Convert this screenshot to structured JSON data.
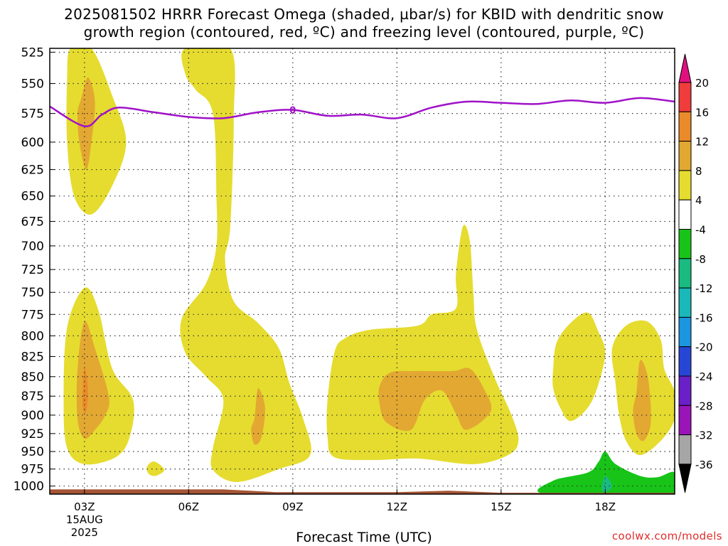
{
  "title": {
    "line1": "2025081502 HRRR Forecast Omega (shaded, µbar/s) for KBID with dendritic snow",
    "line2": "growth region (contoured, red, ºC) and freezing level (contoured, purple, ºC)"
  },
  "credit": "coolwx.com/models",
  "chart_data": {
    "type": "heatmap",
    "title": "2025081502 HRRR Forecast Omega (shaded, µbar/s) for KBID with dendritic snow growth region (contoured, red, ºC) and freezing level (contoured, purple, ºC)",
    "xlabel": "Forecast Time (UTC)",
    "ylabel": "",
    "x_range_hours_utc": [
      2,
      20
    ],
    "y_range_hpa": [
      1012,
      522
    ],
    "y_scale": "log-pressure (inverted)",
    "grid": true,
    "x_ticks": [
      {
        "hour": 3,
        "label": "03Z",
        "sub1": "15AUG",
        "sub2": "2025"
      },
      {
        "hour": 6,
        "label": "06Z"
      },
      {
        "hour": 9,
        "label": "09Z"
      },
      {
        "hour": 12,
        "label": "12Z"
      },
      {
        "hour": 15,
        "label": "15Z"
      },
      {
        "hour": 18,
        "label": "18Z"
      }
    ],
    "y_ticks": [
      525,
      550,
      575,
      600,
      625,
      650,
      675,
      700,
      725,
      750,
      775,
      800,
      825,
      850,
      875,
      900,
      925,
      950,
      975,
      1000
    ],
    "colorbar": {
      "bins": [
        {
          "lo": 20,
          "hi": null,
          "color": "#e0117f"
        },
        {
          "lo": 16,
          "hi": 20,
          "color": "#f03c3c"
        },
        {
          "lo": 12,
          "hi": 16,
          "color": "#ea8a2a"
        },
        {
          "lo": 8,
          "hi": 12,
          "color": "#e3a832"
        },
        {
          "lo": 4,
          "hi": 8,
          "color": "#e5dc2f"
        },
        {
          "lo": -4,
          "hi": 4,
          "color": "#ffffff"
        },
        {
          "lo": -8,
          "hi": -4,
          "color": "#17c417"
        },
        {
          "lo": -12,
          "hi": -8,
          "color": "#19bb80"
        },
        {
          "lo": -16,
          "hi": -12,
          "color": "#19b9b9"
        },
        {
          "lo": -20,
          "hi": -16,
          "color": "#1c96e0"
        },
        {
          "lo": -24,
          "hi": -20,
          "color": "#2846d6"
        },
        {
          "lo": -28,
          "hi": -24,
          "color": "#6a1fc8"
        },
        {
          "lo": -32,
          "hi": -28,
          "color": "#9a14b8"
        },
        {
          "lo": -36,
          "hi": -32,
          "color": "#a6a6a6"
        },
        {
          "lo": null,
          "hi": -36,
          "color": "#000000"
        }
      ],
      "tick_labels": [
        "20",
        "16",
        "12",
        "8",
        "4",
        "-4",
        "-8",
        "-12",
        "-16",
        "-20",
        "-24",
        "-28",
        "-32",
        "-36"
      ]
    },
    "freezing_level": {
      "color": "#a012c8",
      "label": "0",
      "points": [
        [
          2.0,
          569
        ],
        [
          3.0,
          586
        ],
        [
          3.5,
          576
        ],
        [
          4.0,
          570
        ],
        [
          5.0,
          574
        ],
        [
          6.0,
          578
        ],
        [
          7.0,
          579
        ],
        [
          8.0,
          574
        ],
        [
          9.0,
          572
        ],
        [
          10.0,
          577
        ],
        [
          11.0,
          576
        ],
        [
          12.0,
          579
        ],
        [
          13.0,
          570
        ],
        [
          14.0,
          565
        ],
        [
          15.0,
          566
        ],
        [
          16.0,
          567
        ],
        [
          17.0,
          564
        ],
        [
          18.0,
          566
        ],
        [
          19.0,
          562
        ],
        [
          20.0,
          565
        ]
      ]
    },
    "omega_regions": [
      {
        "value_bin": "4 to 8",
        "color": "#e5dc2f",
        "points": [
          [
            2.6,
            522
          ],
          [
            3.2,
            522
          ],
          [
            3.8,
            560
          ],
          [
            4.2,
            600
          ],
          [
            3.8,
            640
          ],
          [
            3.2,
            668
          ],
          [
            2.7,
            650
          ],
          [
            2.5,
            600
          ],
          [
            2.5,
            545
          ]
        ]
      },
      {
        "value_bin": "8 to 12",
        "color": "#e3a832",
        "points": [
          [
            2.9,
            563
          ],
          [
            3.1,
            545
          ],
          [
            3.3,
            565
          ],
          [
            3.2,
            600
          ],
          [
            3.05,
            625
          ],
          [
            2.85,
            600
          ],
          [
            2.8,
            575
          ]
        ]
      },
      {
        "value_bin": "4 to 8",
        "color": "#e5dc2f",
        "points": [
          [
            2.5,
            790
          ],
          [
            3.0,
            745
          ],
          [
            3.4,
            770
          ],
          [
            3.8,
            840
          ],
          [
            4.4,
            880
          ],
          [
            4.3,
            930
          ],
          [
            3.9,
            958
          ],
          [
            3.0,
            968
          ],
          [
            2.5,
            945
          ],
          [
            2.4,
            880
          ]
        ]
      },
      {
        "value_bin": "8 to 12",
        "color": "#e3a832",
        "points": [
          [
            2.8,
            840
          ],
          [
            3.0,
            783
          ],
          [
            3.3,
            815
          ],
          [
            3.7,
            875
          ],
          [
            3.6,
            900
          ],
          [
            3.3,
            920
          ],
          [
            3.0,
            932
          ],
          [
            2.8,
            905
          ]
        ]
      },
      {
        "value_bin": "12 to 16",
        "color": "#ea8a2a",
        "points": [
          [
            2.95,
            865
          ],
          [
            3.0,
            838
          ],
          [
            3.1,
            865
          ],
          [
            3.05,
            895
          ],
          [
            2.95,
            890
          ]
        ]
      },
      {
        "value_bin": "4 to 8",
        "color": "#e5dc2f",
        "points": [
          [
            4.8,
            972
          ],
          [
            5.0,
            964
          ],
          [
            5.3,
            976
          ],
          [
            5.05,
            985
          ],
          [
            4.85,
            982
          ]
        ]
      },
      {
        "value_bin": "4 to 8",
        "color": "#e5dc2f",
        "points": [
          [
            5.9,
            522
          ],
          [
            7.2,
            522
          ],
          [
            7.3,
            580
          ],
          [
            7.2,
            680
          ],
          [
            7.05,
            715
          ],
          [
            7.3,
            760
          ],
          [
            8.0,
            785
          ],
          [
            8.6,
            815
          ],
          [
            8.9,
            858
          ],
          [
            9.3,
            905
          ],
          [
            9.5,
            955
          ],
          [
            8.6,
            975
          ],
          [
            7.4,
            994
          ],
          [
            6.7,
            976
          ],
          [
            6.7,
            945
          ],
          [
            7.0,
            880
          ],
          [
            6.5,
            850
          ],
          [
            5.9,
            820
          ],
          [
            5.8,
            780
          ],
          [
            6.5,
            740
          ],
          [
            6.8,
            700
          ],
          [
            6.8,
            650
          ],
          [
            6.7,
            575
          ],
          [
            6.2,
            555
          ],
          [
            5.9,
            542
          ]
        ]
      },
      {
        "value_bin": "8 to 12",
        "color": "#e3a832",
        "points": [
          [
            7.9,
            903
          ],
          [
            8.0,
            865
          ],
          [
            8.2,
            890
          ],
          [
            8.1,
            930
          ],
          [
            7.9,
            940
          ],
          [
            7.8,
            920
          ]
        ]
      },
      {
        "value_bin": "4 to 8",
        "color": "#e5dc2f",
        "points": [
          [
            10.2,
            820
          ],
          [
            10.5,
            803
          ],
          [
            11.2,
            793
          ],
          [
            12.6,
            788
          ],
          [
            13.0,
            775
          ],
          [
            13.7,
            768
          ],
          [
            13.7,
            730
          ],
          [
            13.9,
            680
          ],
          [
            14.1,
            695
          ],
          [
            14.2,
            750
          ],
          [
            14.3,
            792
          ],
          [
            14.8,
            850
          ],
          [
            15.3,
            900
          ],
          [
            15.5,
            935
          ],
          [
            15.2,
            955
          ],
          [
            14.2,
            968
          ],
          [
            12.6,
            960
          ],
          [
            11.3,
            962
          ],
          [
            10.2,
            958
          ],
          [
            10.0,
            930
          ],
          [
            10.0,
            880
          ]
        ]
      },
      {
        "value_bin": "8 to 12",
        "color": "#e3a832",
        "points": [
          [
            11.5,
            862
          ],
          [
            11.8,
            845
          ],
          [
            12.5,
            843
          ],
          [
            13.6,
            843
          ],
          [
            14.1,
            840
          ],
          [
            14.5,
            865
          ],
          [
            14.7,
            895
          ],
          [
            14.0,
            920
          ],
          [
            13.7,
            898
          ],
          [
            13.3,
            868
          ],
          [
            12.8,
            880
          ],
          [
            12.4,
            920
          ],
          [
            11.7,
            910
          ],
          [
            11.5,
            885
          ]
        ]
      },
      {
        "value_bin": "4 to 8",
        "color": "#e5dc2f",
        "points": [
          [
            16.5,
            840
          ],
          [
            16.6,
            808
          ],
          [
            17.0,
            785
          ],
          [
            17.5,
            773
          ],
          [
            17.8,
            795
          ],
          [
            18.0,
            820
          ],
          [
            17.8,
            860
          ],
          [
            17.5,
            890
          ],
          [
            17.0,
            908
          ],
          [
            16.7,
            890
          ],
          [
            16.5,
            865
          ]
        ]
      },
      {
        "value_bin": "4 to 8",
        "color": "#e5dc2f",
        "points": [
          [
            18.2,
            815
          ],
          [
            18.6,
            788
          ],
          [
            19.2,
            783
          ],
          [
            19.6,
            805
          ],
          [
            19.7,
            840
          ],
          [
            20.0,
            870
          ],
          [
            20.0,
            905
          ],
          [
            19.6,
            935
          ],
          [
            19.0,
            955
          ],
          [
            18.6,
            935
          ],
          [
            18.4,
            900
          ],
          [
            18.3,
            860
          ]
        ]
      },
      {
        "value_bin": "8 to 12",
        "color": "#e3a832",
        "points": [
          [
            18.9,
            870
          ],
          [
            19.0,
            830
          ],
          [
            19.2,
            845
          ],
          [
            19.3,
            880
          ],
          [
            19.3,
            915
          ],
          [
            19.1,
            935
          ],
          [
            18.9,
            925
          ],
          [
            18.8,
            895
          ]
        ]
      },
      {
        "value_bin": "-8 to -4",
        "color": "#17c417",
        "points": [
          [
            16.3,
            1012
          ],
          [
            16.5,
            992
          ],
          [
            17.5,
            980
          ],
          [
            17.8,
            965
          ],
          [
            18.0,
            950
          ],
          [
            18.3,
            968
          ],
          [
            19.0,
            985
          ],
          [
            19.5,
            987
          ],
          [
            20.0,
            980
          ],
          [
            20.0,
            1012
          ]
        ]
      },
      {
        "value_bin": "-12 to -8",
        "color": "#19bb80",
        "points": [
          [
            17.9,
            1003
          ],
          [
            18.0,
            985
          ],
          [
            18.2,
            1000
          ],
          [
            18.0,
            1009
          ]
        ]
      },
      {
        "value_bin": "terrain",
        "color": "#a55535",
        "points": [
          [
            2.0,
            1012
          ],
          [
            2.0,
            1005
          ],
          [
            7.0,
            1005
          ],
          [
            8.5,
            1009
          ],
          [
            12.0,
            1009
          ],
          [
            13.5,
            1007
          ],
          [
            15.0,
            1010
          ],
          [
            20.0,
            1010
          ],
          [
            20.0,
            1012
          ]
        ]
      }
    ]
  }
}
